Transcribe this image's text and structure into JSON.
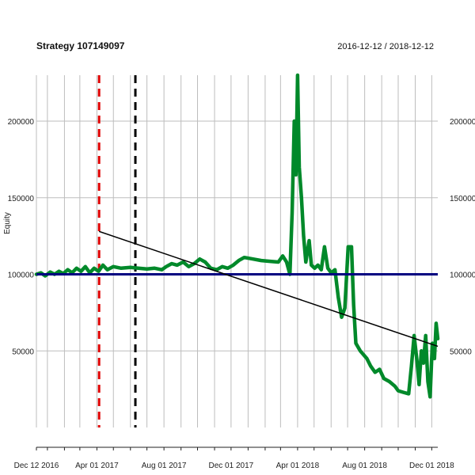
{
  "chart_data": {
    "type": "line",
    "title": "Strategy 107149097",
    "date_range": "2016-12-12 / 2018-12-12",
    "ylabel": "Equity",
    "xlabel": "",
    "xlim": [
      "2016-12-12",
      "2018-12-12"
    ],
    "ylim": [
      0,
      230000
    ],
    "grid": true,
    "x_tick_labels": [
      {
        "date": "2016-12-12",
        "label": "Dec 12 2016"
      },
      {
        "date": "2017-04-01",
        "label": "Apr 01 2017"
      },
      {
        "date": "2017-08-01",
        "label": "Aug 01 2017"
      },
      {
        "date": "2017-12-01",
        "label": "Dec 01 2017"
      },
      {
        "date": "2018-04-01",
        "label": "Apr 01 2018"
      },
      {
        "date": "2018-08-01",
        "label": "Aug 01 2018"
      },
      {
        "date": "2018-12-01",
        "label": "Dec 01 2018"
      }
    ],
    "y_ticks": [
      50000,
      100000,
      150000,
      200000
    ],
    "vertical_grid_dates": [
      "2016-12-12",
      "2017-01-01",
      "2017-02-01",
      "2017-03-01",
      "2017-04-01",
      "2017-05-01",
      "2017-06-01",
      "2017-07-01",
      "2017-08-01",
      "2017-09-01",
      "2017-10-01",
      "2017-11-01",
      "2017-12-01",
      "2018-01-01",
      "2018-02-01",
      "2018-03-01",
      "2018-04-01",
      "2018-05-01",
      "2018-06-01",
      "2018-07-01",
      "2018-08-01",
      "2018-09-01",
      "2018-10-01",
      "2018-11-01",
      "2018-12-01"
    ],
    "series": [
      {
        "values_date_equity": [
          [
            "2016-12-12",
            100000
          ],
          [
            "2016-12-20",
            101000
          ],
          [
            "2016-12-28",
            99000
          ],
          [
            "2017-01-06",
            101500
          ],
          [
            "2017-01-14",
            100000
          ],
          [
            "2017-01-22",
            102000
          ],
          [
            "2017-01-30",
            100500
          ],
          [
            "2017-02-07",
            103000
          ],
          [
            "2017-02-15",
            101000
          ],
          [
            "2017-02-23",
            104000
          ],
          [
            "2017-03-03",
            102000
          ],
          [
            "2017-03-11",
            105000
          ],
          [
            "2017-03-19",
            101000
          ],
          [
            "2017-03-27",
            104000
          ],
          [
            "2017-04-04",
            102000
          ],
          [
            "2017-04-12",
            106000
          ],
          [
            "2017-04-20",
            103000
          ],
          [
            "2017-05-01",
            105000
          ],
          [
            "2017-05-15",
            104000
          ],
          [
            "2017-06-01",
            104500
          ],
          [
            "2017-06-15",
            104000
          ],
          [
            "2017-07-01",
            103500
          ],
          [
            "2017-07-15",
            104000
          ],
          [
            "2017-07-28",
            103000
          ],
          [
            "2017-08-05",
            105000
          ],
          [
            "2017-08-15",
            107000
          ],
          [
            "2017-08-25",
            106000
          ],
          [
            "2017-09-05",
            108000
          ],
          [
            "2017-09-15",
            105000
          ],
          [
            "2017-09-25",
            107000
          ],
          [
            "2017-10-05",
            110000
          ],
          [
            "2017-10-15",
            108000
          ],
          [
            "2017-10-25",
            104000
          ],
          [
            "2017-11-05",
            103000
          ],
          [
            "2017-11-15",
            105000
          ],
          [
            "2017-11-25",
            104000
          ],
          [
            "2017-12-05",
            106000
          ],
          [
            "2017-12-15",
            109000
          ],
          [
            "2017-12-25",
            111000
          ],
          [
            "2018-01-10",
            110000
          ],
          [
            "2018-01-25",
            109000
          ],
          [
            "2018-02-10",
            108500
          ],
          [
            "2018-02-25",
            108000
          ],
          [
            "2018-03-05",
            112000
          ],
          [
            "2018-03-12",
            108000
          ],
          [
            "2018-03-18",
            100000
          ],
          [
            "2018-03-22",
            140000
          ],
          [
            "2018-03-26",
            200000
          ],
          [
            "2018-03-29",
            165000
          ],
          [
            "2018-04-01",
            230000
          ],
          [
            "2018-04-04",
            170000
          ],
          [
            "2018-04-08",
            150000
          ],
          [
            "2018-04-12",
            125000
          ],
          [
            "2018-04-16",
            108000
          ],
          [
            "2018-04-22",
            122000
          ],
          [
            "2018-04-26",
            106000
          ],
          [
            "2018-05-02",
            104000
          ],
          [
            "2018-05-08",
            106000
          ],
          [
            "2018-05-14",
            103000
          ],
          [
            "2018-05-20",
            118000
          ],
          [
            "2018-05-26",
            104000
          ],
          [
            "2018-06-01",
            101000
          ],
          [
            "2018-06-08",
            103000
          ],
          [
            "2018-06-14",
            85000
          ],
          [
            "2018-06-20",
            72000
          ],
          [
            "2018-06-26",
            78000
          ],
          [
            "2018-07-02",
            118000
          ],
          [
            "2018-07-08",
            118000
          ],
          [
            "2018-07-12",
            80000
          ],
          [
            "2018-07-16",
            55000
          ],
          [
            "2018-07-24",
            50000
          ],
          [
            "2018-08-05",
            45000
          ],
          [
            "2018-08-12",
            40000
          ],
          [
            "2018-08-20",
            36000
          ],
          [
            "2018-08-28",
            38000
          ],
          [
            "2018-09-05",
            32000
          ],
          [
            "2018-09-15",
            30000
          ],
          [
            "2018-09-25",
            27000
          ],
          [
            "2018-10-01",
            24000
          ],
          [
            "2018-10-10",
            23000
          ],
          [
            "2018-10-20",
            22000
          ],
          [
            "2018-10-25",
            40000
          ],
          [
            "2018-10-30",
            60000
          ],
          [
            "2018-11-04",
            44000
          ],
          [
            "2018-11-08",
            28000
          ],
          [
            "2018-11-12",
            50000
          ],
          [
            "2018-11-16",
            42000
          ],
          [
            "2018-11-20",
            60000
          ],
          [
            "2018-11-24",
            30000
          ],
          [
            "2018-11-28",
            20000
          ],
          [
            "2018-12-02",
            55000
          ],
          [
            "2018-12-06",
            45000
          ],
          [
            "2018-12-09",
            68000
          ],
          [
            "2018-12-12",
            58000
          ]
        ],
        "color": "#00892a"
      }
    ],
    "reference_lines": {
      "horizontal_value": 100000,
      "horizontal_color": "#000080",
      "trend_start": [
        "2017-04-05",
        128000
      ],
      "trend_end": [
        "2018-12-12",
        53000
      ],
      "trend_color": "#000000",
      "red_dashed_date": "2017-04-05",
      "red_dashed_color": "#e00000",
      "black_dashed_date": "2017-06-10",
      "black_dashed_color": "#000000"
    }
  }
}
